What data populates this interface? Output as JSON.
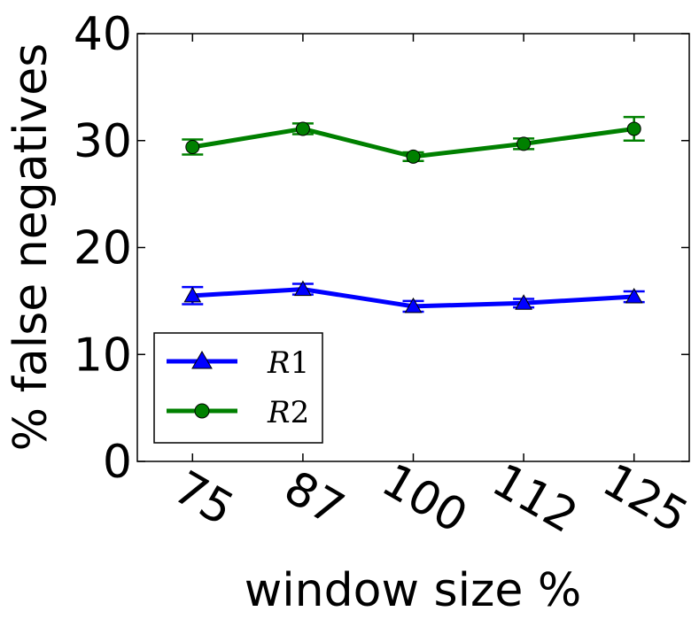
{
  "chart_data": {
    "type": "line",
    "xlabel": "window size %",
    "ylabel": "% false negatives",
    "categories": [
      "75",
      "87",
      "100",
      "112",
      "125"
    ],
    "ylim": [
      0,
      40
    ],
    "yticks": [
      "0",
      "10",
      "20",
      "30",
      "40"
    ],
    "grid": false,
    "legend_position": "lower-left",
    "series": [
      {
        "name": "R1",
        "legend_main": "R",
        "legend_sub": "1",
        "color": "#0000ff",
        "marker": "triangle",
        "values": [
          15.5,
          16.1,
          14.5,
          14.8,
          15.4
        ],
        "errors": [
          0.8,
          0.5,
          0.5,
          0.4,
          0.5
        ]
      },
      {
        "name": "R2",
        "legend_main": "R",
        "legend_sub": "2",
        "color": "#008000",
        "marker": "circle",
        "values": [
          29.4,
          31.1,
          28.5,
          29.7,
          31.1
        ],
        "errors": [
          0.7,
          0.5,
          0.4,
          0.5,
          1.1
        ]
      }
    ]
  }
}
